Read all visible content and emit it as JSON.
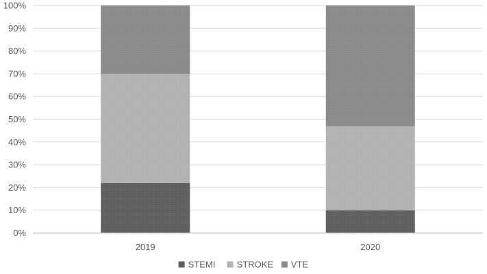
{
  "chart_data": {
    "type": "bar",
    "stacked": true,
    "percent": true,
    "categories": [
      "2019",
      "2020"
    ],
    "series": [
      {
        "name": "STEMI",
        "values": [
          22,
          10
        ],
        "color": "#5f5f5f"
      },
      {
        "name": "STROKE",
        "values": [
          48,
          37
        ],
        "color": "#b2b2b2"
      },
      {
        "name": "VTE",
        "values": [
          30,
          53
        ],
        "color": "#8a8a8a"
      }
    ],
    "y_ticks": [
      "0%",
      "10%",
      "20%",
      "30%",
      "40%",
      "50%",
      "60%",
      "70%",
      "80%",
      "90%",
      "100%"
    ],
    "ylim": [
      0,
      100
    ],
    "title": "",
    "xlabel": "",
    "ylabel": "",
    "grid": true,
    "legend": "bottom-center"
  }
}
